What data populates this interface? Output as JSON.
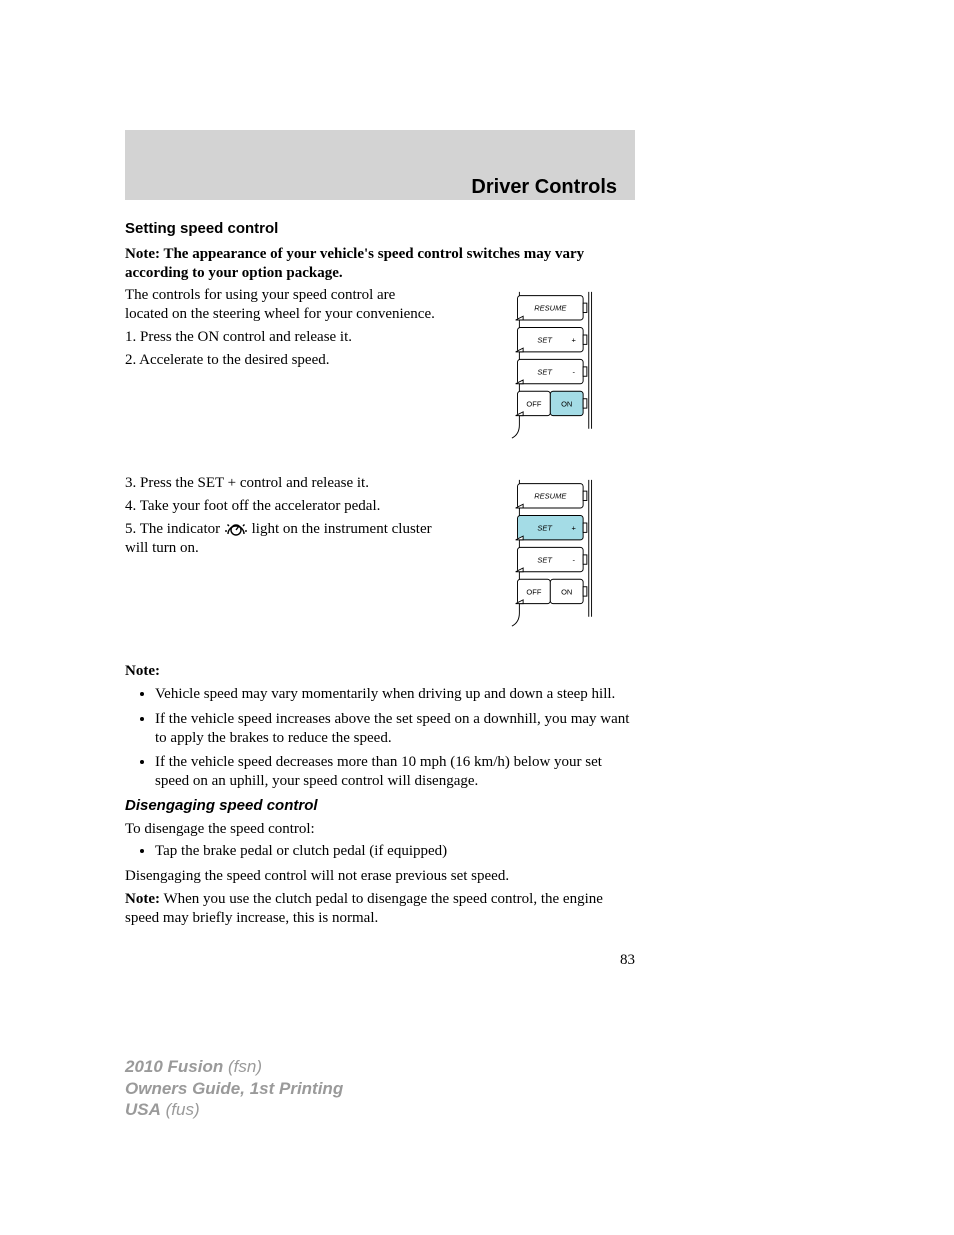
{
  "chapter": "Driver Controls",
  "sections": {
    "setting_heading": "Setting speed control",
    "appearance_note": "Note: The appearance of your vehicle's speed control switches may vary according to your option package.",
    "intro": "The controls for using your speed control are located on the steering wheel for your convenience.",
    "step1": "1. Press the ON control and release it.",
    "step2": "2. Accelerate to the desired speed.",
    "step3": "3. Press the SET + control and release it.",
    "step4": "4. Take your foot off the accelerator pedal.",
    "step5a": "5. The indicator ",
    "step5b": " light on the instrument cluster will turn on.",
    "note_label": "Note:",
    "bullet1": "Vehicle speed may vary momentarily when driving up and down a steep hill.",
    "bullet2": "If the vehicle speed increases above the set speed on a downhill, you may want to apply the brakes to reduce the speed.",
    "bullet3": "If the vehicle speed decreases more than 10 mph (16 km/h) below your set speed on an uphill, your speed control will disengage.",
    "disengage_heading": "Disengaging speed control",
    "disengage_intro": "To disengage the speed control:",
    "disengage_bullet": "Tap the brake pedal or clutch pedal (if equipped)",
    "disengage_after": "Disengaging the speed control will not erase previous set speed.",
    "disengage_note_label": "Note:",
    "disengage_note_text": " When you use the clutch pedal to disengage the speed control, the engine speed may briefly increase, this is normal.",
    "page_number": "83"
  },
  "footer": {
    "line1a": "2010 Fusion",
    "line1b": " (fsn)",
    "line2": "Owners Guide, 1st Printing",
    "line3a": "USA",
    "line3b": " (fus)"
  },
  "diagram": {
    "labels": {
      "resume": "RESUME",
      "set_plus": "SET",
      "set_plus_sign": "+",
      "set_minus": "SET",
      "set_minus_sign": "-",
      "off": "OFF",
      "on": "ON"
    },
    "colors": {
      "highlight": "#a4dce6",
      "stroke": "#000000",
      "fill": "#ffffff"
    },
    "btn_h": 26,
    "gap": 8,
    "width": 70,
    "fontsize": 8
  }
}
